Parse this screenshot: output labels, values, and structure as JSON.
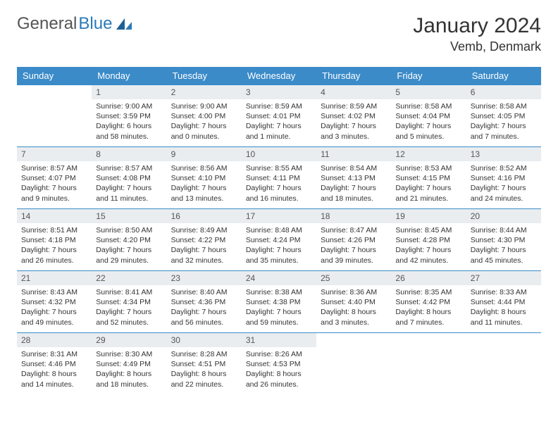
{
  "logo": {
    "word1": "General",
    "word2": "Blue"
  },
  "header": {
    "month_title": "January 2024",
    "location": "Vemb, Denmark"
  },
  "colors": {
    "header_bg": "#3b8bc9",
    "header_fg": "#ffffff",
    "daynum_bg": "#e9edf0",
    "body_fg": "#333333",
    "divider": "#3b8bc9",
    "logo_gray": "#555555",
    "logo_blue": "#2a7ab8"
  },
  "weekdays": [
    "Sunday",
    "Monday",
    "Tuesday",
    "Wednesday",
    "Thursday",
    "Friday",
    "Saturday"
  ],
  "weeks": [
    [
      null,
      {
        "n": "1",
        "sr": "Sunrise: 9:00 AM",
        "ss": "Sunset: 3:59 PM",
        "d1": "Daylight: 6 hours",
        "d2": "and 58 minutes."
      },
      {
        "n": "2",
        "sr": "Sunrise: 9:00 AM",
        "ss": "Sunset: 4:00 PM",
        "d1": "Daylight: 7 hours",
        "d2": "and 0 minutes."
      },
      {
        "n": "3",
        "sr": "Sunrise: 8:59 AM",
        "ss": "Sunset: 4:01 PM",
        "d1": "Daylight: 7 hours",
        "d2": "and 1 minute."
      },
      {
        "n": "4",
        "sr": "Sunrise: 8:59 AM",
        "ss": "Sunset: 4:02 PM",
        "d1": "Daylight: 7 hours",
        "d2": "and 3 minutes."
      },
      {
        "n": "5",
        "sr": "Sunrise: 8:58 AM",
        "ss": "Sunset: 4:04 PM",
        "d1": "Daylight: 7 hours",
        "d2": "and 5 minutes."
      },
      {
        "n": "6",
        "sr": "Sunrise: 8:58 AM",
        "ss": "Sunset: 4:05 PM",
        "d1": "Daylight: 7 hours",
        "d2": "and 7 minutes."
      }
    ],
    [
      {
        "n": "7",
        "sr": "Sunrise: 8:57 AM",
        "ss": "Sunset: 4:07 PM",
        "d1": "Daylight: 7 hours",
        "d2": "and 9 minutes."
      },
      {
        "n": "8",
        "sr": "Sunrise: 8:57 AM",
        "ss": "Sunset: 4:08 PM",
        "d1": "Daylight: 7 hours",
        "d2": "and 11 minutes."
      },
      {
        "n": "9",
        "sr": "Sunrise: 8:56 AM",
        "ss": "Sunset: 4:10 PM",
        "d1": "Daylight: 7 hours",
        "d2": "and 13 minutes."
      },
      {
        "n": "10",
        "sr": "Sunrise: 8:55 AM",
        "ss": "Sunset: 4:11 PM",
        "d1": "Daylight: 7 hours",
        "d2": "and 16 minutes."
      },
      {
        "n": "11",
        "sr": "Sunrise: 8:54 AM",
        "ss": "Sunset: 4:13 PM",
        "d1": "Daylight: 7 hours",
        "d2": "and 18 minutes."
      },
      {
        "n": "12",
        "sr": "Sunrise: 8:53 AM",
        "ss": "Sunset: 4:15 PM",
        "d1": "Daylight: 7 hours",
        "d2": "and 21 minutes."
      },
      {
        "n": "13",
        "sr": "Sunrise: 8:52 AM",
        "ss": "Sunset: 4:16 PM",
        "d1": "Daylight: 7 hours",
        "d2": "and 24 minutes."
      }
    ],
    [
      {
        "n": "14",
        "sr": "Sunrise: 8:51 AM",
        "ss": "Sunset: 4:18 PM",
        "d1": "Daylight: 7 hours",
        "d2": "and 26 minutes."
      },
      {
        "n": "15",
        "sr": "Sunrise: 8:50 AM",
        "ss": "Sunset: 4:20 PM",
        "d1": "Daylight: 7 hours",
        "d2": "and 29 minutes."
      },
      {
        "n": "16",
        "sr": "Sunrise: 8:49 AM",
        "ss": "Sunset: 4:22 PM",
        "d1": "Daylight: 7 hours",
        "d2": "and 32 minutes."
      },
      {
        "n": "17",
        "sr": "Sunrise: 8:48 AM",
        "ss": "Sunset: 4:24 PM",
        "d1": "Daylight: 7 hours",
        "d2": "and 35 minutes."
      },
      {
        "n": "18",
        "sr": "Sunrise: 8:47 AM",
        "ss": "Sunset: 4:26 PM",
        "d1": "Daylight: 7 hours",
        "d2": "and 39 minutes."
      },
      {
        "n": "19",
        "sr": "Sunrise: 8:45 AM",
        "ss": "Sunset: 4:28 PM",
        "d1": "Daylight: 7 hours",
        "d2": "and 42 minutes."
      },
      {
        "n": "20",
        "sr": "Sunrise: 8:44 AM",
        "ss": "Sunset: 4:30 PM",
        "d1": "Daylight: 7 hours",
        "d2": "and 45 minutes."
      }
    ],
    [
      {
        "n": "21",
        "sr": "Sunrise: 8:43 AM",
        "ss": "Sunset: 4:32 PM",
        "d1": "Daylight: 7 hours",
        "d2": "and 49 minutes."
      },
      {
        "n": "22",
        "sr": "Sunrise: 8:41 AM",
        "ss": "Sunset: 4:34 PM",
        "d1": "Daylight: 7 hours",
        "d2": "and 52 minutes."
      },
      {
        "n": "23",
        "sr": "Sunrise: 8:40 AM",
        "ss": "Sunset: 4:36 PM",
        "d1": "Daylight: 7 hours",
        "d2": "and 56 minutes."
      },
      {
        "n": "24",
        "sr": "Sunrise: 8:38 AM",
        "ss": "Sunset: 4:38 PM",
        "d1": "Daylight: 7 hours",
        "d2": "and 59 minutes."
      },
      {
        "n": "25",
        "sr": "Sunrise: 8:36 AM",
        "ss": "Sunset: 4:40 PM",
        "d1": "Daylight: 8 hours",
        "d2": "and 3 minutes."
      },
      {
        "n": "26",
        "sr": "Sunrise: 8:35 AM",
        "ss": "Sunset: 4:42 PM",
        "d1": "Daylight: 8 hours",
        "d2": "and 7 minutes."
      },
      {
        "n": "27",
        "sr": "Sunrise: 8:33 AM",
        "ss": "Sunset: 4:44 PM",
        "d1": "Daylight: 8 hours",
        "d2": "and 11 minutes."
      }
    ],
    [
      {
        "n": "28",
        "sr": "Sunrise: 8:31 AM",
        "ss": "Sunset: 4:46 PM",
        "d1": "Daylight: 8 hours",
        "d2": "and 14 minutes."
      },
      {
        "n": "29",
        "sr": "Sunrise: 8:30 AM",
        "ss": "Sunset: 4:49 PM",
        "d1": "Daylight: 8 hours",
        "d2": "and 18 minutes."
      },
      {
        "n": "30",
        "sr": "Sunrise: 8:28 AM",
        "ss": "Sunset: 4:51 PM",
        "d1": "Daylight: 8 hours",
        "d2": "and 22 minutes."
      },
      {
        "n": "31",
        "sr": "Sunrise: 8:26 AM",
        "ss": "Sunset: 4:53 PM",
        "d1": "Daylight: 8 hours",
        "d2": "and 26 minutes."
      },
      null,
      null,
      null
    ]
  ]
}
